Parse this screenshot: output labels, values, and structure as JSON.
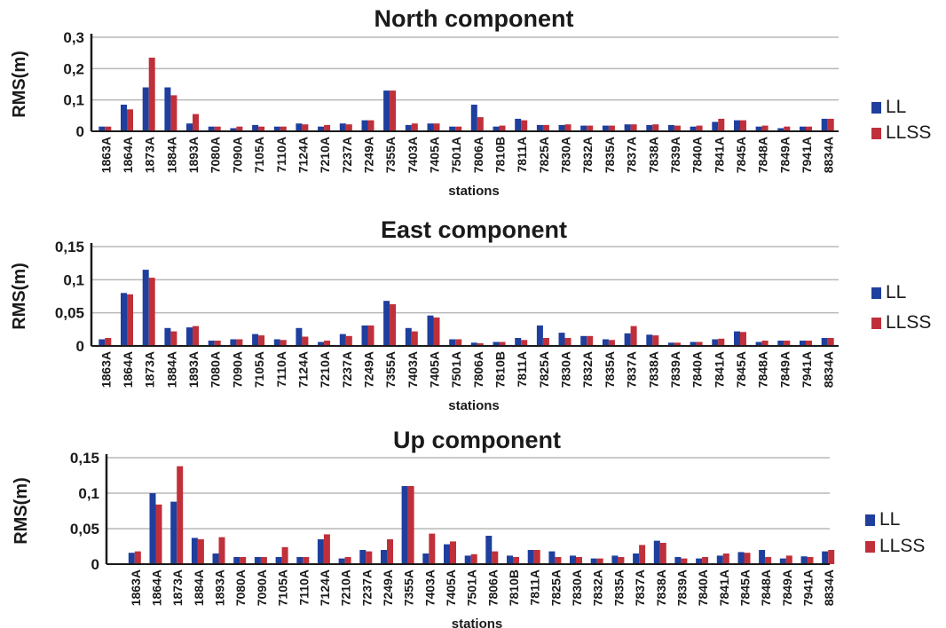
{
  "colors": {
    "ll": "#1f3f9e",
    "llss": "#c0303a",
    "axis": "#1a1a1a",
    "grid": "#b8b8b8",
    "text": "#1a1a1a"
  },
  "chart_data": [
    {
      "type": "bar",
      "title": "North component",
      "ylabel": "RMS(m)",
      "xlabel": "stations",
      "ylim": [
        0,
        0.3
      ],
      "yticks": [
        0,
        0.1,
        0.2,
        0.3
      ],
      "yticklabels": [
        "0",
        "0,1",
        "0,2",
        "0,3"
      ],
      "grid": true,
      "legend": "right",
      "categories": [
        "1863A",
        "1864A",
        "1873A",
        "1884A",
        "1893A",
        "7080A",
        "7090A",
        "7105A",
        "7110A",
        "7124A",
        "7210A",
        "7237A",
        "7249A",
        "7355A",
        "7403A",
        "7405A",
        "7501A",
        "7806A",
        "7810B",
        "7811A",
        "7825A",
        "7830A",
        "7832A",
        "7835A",
        "7837A",
        "7838A",
        "7839A",
        "7840A",
        "7841A",
        "7845A",
        "7848A",
        "7849A",
        "7941A",
        "8834A"
      ],
      "series": [
        {
          "name": "LL",
          "values": [
            0.015,
            0.085,
            0.14,
            0.14,
            0.025,
            0.015,
            0.01,
            0.02,
            0.015,
            0.025,
            0.015,
            0.025,
            0.035,
            0.13,
            0.02,
            0.025,
            0.015,
            0.085,
            0.015,
            0.04,
            0.02,
            0.02,
            0.018,
            0.018,
            0.022,
            0.02,
            0.02,
            0.015,
            0.03,
            0.035,
            0.015,
            0.01,
            0.015,
            0.04
          ]
        },
        {
          "name": "LLSS",
          "values": [
            0.015,
            0.07,
            0.235,
            0.115,
            0.055,
            0.015,
            0.015,
            0.015,
            0.015,
            0.022,
            0.02,
            0.022,
            0.035,
            0.13,
            0.025,
            0.025,
            0.015,
            0.045,
            0.018,
            0.035,
            0.02,
            0.022,
            0.018,
            0.018,
            0.022,
            0.022,
            0.018,
            0.018,
            0.04,
            0.035,
            0.018,
            0.015,
            0.015,
            0.04
          ]
        }
      ]
    },
    {
      "type": "bar",
      "title": "East component",
      "ylabel": "RMS(m)",
      "xlabel": "stations",
      "ylim": [
        0,
        0.15
      ],
      "yticks": [
        0,
        0.05,
        0.1,
        0.15
      ],
      "yticklabels": [
        "0",
        "0,05",
        "0,1",
        "0,15"
      ],
      "grid": true,
      "legend": "right",
      "categories": [
        "1863A",
        "1864A",
        "1873A",
        "1884A",
        "1893A",
        "7080A",
        "7090A",
        "7105A",
        "7110A",
        "7124A",
        "7210A",
        "7237A",
        "7249A",
        "7355A",
        "7403A",
        "7405A",
        "7501A",
        "7806A",
        "7810B",
        "7811A",
        "7825A",
        "7830A",
        "7832A",
        "7835A",
        "7837A",
        "7838A",
        "7839A",
        "7840A",
        "7841A",
        "7845A",
        "7848A",
        "7849A",
        "7941A",
        "8834A"
      ],
      "series": [
        {
          "name": "LL",
          "values": [
            0.01,
            0.08,
            0.115,
            0.027,
            0.028,
            0.008,
            0.01,
            0.018,
            0.01,
            0.027,
            0.006,
            0.018,
            0.031,
            0.068,
            0.027,
            0.046,
            0.01,
            0.005,
            0.006,
            0.012,
            0.031,
            0.02,
            0.015,
            0.01,
            0.019,
            0.017,
            0.005,
            0.006,
            0.01,
            0.022,
            0.006,
            0.008,
            0.008,
            0.012
          ]
        },
        {
          "name": "LLSS",
          "values": [
            0.012,
            0.078,
            0.103,
            0.022,
            0.03,
            0.008,
            0.01,
            0.016,
            0.009,
            0.014,
            0.008,
            0.015,
            0.031,
            0.063,
            0.022,
            0.043,
            0.01,
            0.004,
            0.006,
            0.009,
            0.012,
            0.012,
            0.015,
            0.009,
            0.03,
            0.016,
            0.005,
            0.006,
            0.011,
            0.021,
            0.008,
            0.008,
            0.008,
            0.012
          ]
        }
      ]
    },
    {
      "type": "bar",
      "title": "Up component",
      "ylabel": "RMS(m)",
      "xlabel": "stations",
      "ylim": [
        0,
        0.15
      ],
      "yticks": [
        0,
        0.05,
        0.1,
        0.15
      ],
      "yticklabels": [
        "0",
        "0,05",
        "0,1",
        "0,15"
      ],
      "grid": true,
      "legend": "right",
      "categories": [
        "1863A",
        "1864A",
        "1873A",
        "1884A",
        "1893A",
        "7080A",
        "7090A",
        "7105A",
        "7110A",
        "7124A",
        "7210A",
        "7237A",
        "7249A",
        "7355A",
        "7403A",
        "7405A",
        "7501A",
        "7806A",
        "7810B",
        "7811A",
        "7825A",
        "7830A",
        "7832A",
        "7835A",
        "7837A",
        "7838A",
        "7839A",
        "7840A",
        "7841A",
        "7845A",
        "7848A",
        "7849A",
        "7941A",
        "8834A"
      ],
      "series": [
        {
          "name": "LL",
          "values": [
            0.016,
            0.1,
            0.088,
            0.037,
            0.015,
            0.01,
            0.01,
            0.01,
            0.01,
            0.035,
            0.008,
            0.02,
            0.02,
            0.11,
            0.015,
            0.028,
            0.012,
            0.04,
            0.012,
            0.02,
            0.018,
            0.012,
            0.008,
            0.012,
            0.015,
            0.033,
            0.01,
            0.008,
            0.012,
            0.017,
            0.02,
            0.008,
            0.011,
            0.018
          ]
        },
        {
          "name": "LLSS",
          "values": [
            0.018,
            0.084,
            0.138,
            0.035,
            0.038,
            0.01,
            0.01,
            0.024,
            0.01,
            0.042,
            0.01,
            0.018,
            0.035,
            0.11,
            0.043,
            0.032,
            0.014,
            0.018,
            0.01,
            0.02,
            0.01,
            0.01,
            0.008,
            0.01,
            0.027,
            0.03,
            0.008,
            0.01,
            0.015,
            0.016,
            0.01,
            0.012,
            0.01,
            0.02
          ]
        }
      ]
    }
  ]
}
